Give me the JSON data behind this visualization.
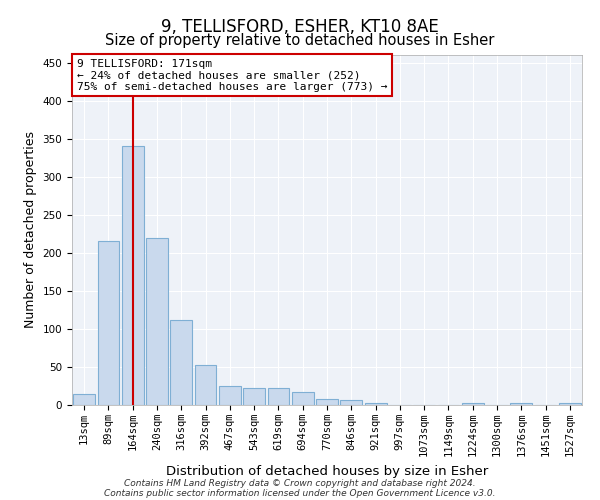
{
  "title": "9, TELLISFORD, ESHER, KT10 8AE",
  "subtitle": "Size of property relative to detached houses in Esher",
  "xlabel": "Distribution of detached houses by size in Esher",
  "ylabel": "Number of detached properties",
  "categories": [
    "13sqm",
    "89sqm",
    "164sqm",
    "240sqm",
    "316sqm",
    "392sqm",
    "467sqm",
    "543sqm",
    "619sqm",
    "694sqm",
    "770sqm",
    "846sqm",
    "921sqm",
    "997sqm",
    "1073sqm",
    "1149sqm",
    "1224sqm",
    "1300sqm",
    "1376sqm",
    "1451sqm",
    "1527sqm"
  ],
  "values": [
    15,
    215,
    340,
    220,
    112,
    53,
    25,
    23,
    22,
    17,
    8,
    6,
    2,
    0,
    0,
    0,
    2,
    0,
    2,
    0,
    2
  ],
  "bar_color": "#c9d9ed",
  "bar_edge_color": "#7fafd4",
  "bar_edge_width": 0.8,
  "vline_x_index": 2,
  "vline_color": "#cc0000",
  "annotation_line1": "9 TELLISFORD: 171sqm",
  "annotation_line2": "← 24% of detached houses are smaller (252)",
  "annotation_line3": "75% of semi-detached houses are larger (773) →",
  "annotation_box_color": "#ffffff",
  "annotation_box_edge": "#cc0000",
  "ylim": [
    0,
    460
  ],
  "yticks": [
    0,
    50,
    100,
    150,
    200,
    250,
    300,
    350,
    400,
    450
  ],
  "title_fontsize": 12,
  "subtitle_fontsize": 10.5,
  "xlabel_fontsize": 9.5,
  "ylabel_fontsize": 9,
  "tick_fontsize": 7.5,
  "footer_line1": "Contains HM Land Registry data © Crown copyright and database right 2024.",
  "footer_line2": "Contains public sector information licensed under the Open Government Licence v3.0.",
  "bg_color": "#eef2f8"
}
